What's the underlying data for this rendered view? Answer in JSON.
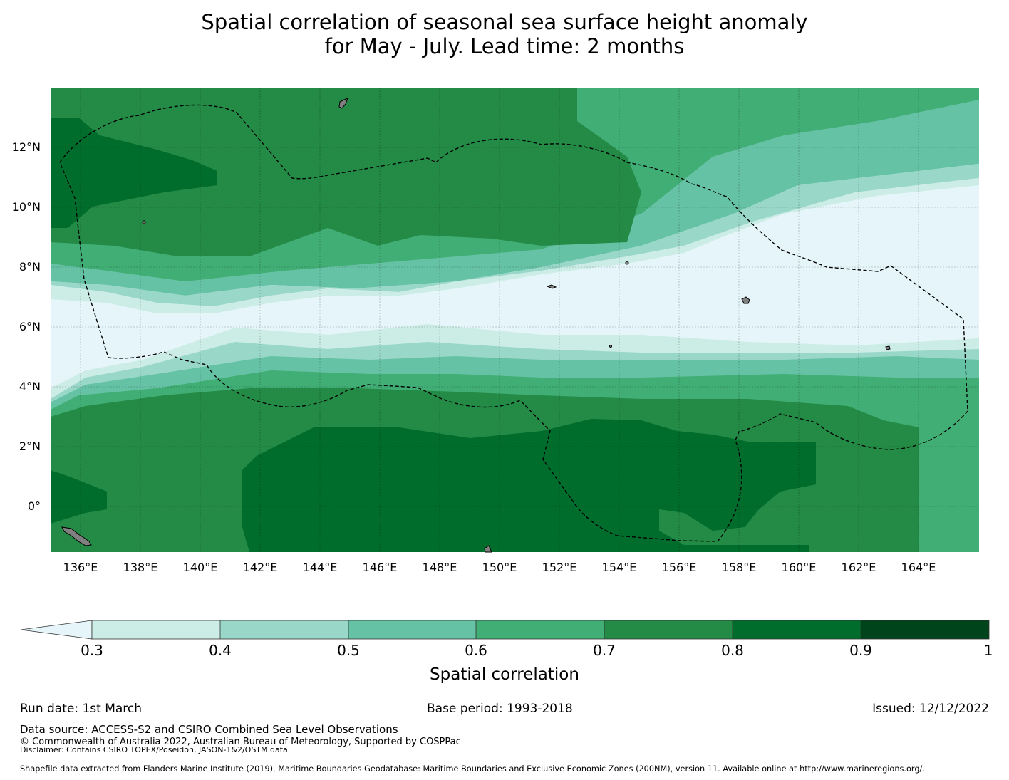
{
  "title": {
    "line1": "Spatial correlation of seasonal sea surface height anomaly",
    "line2": "for May - July. Lead time: 2 months"
  },
  "map": {
    "lon_range": [
      135,
      166
    ],
    "lat_range": [
      -1.5,
      14
    ],
    "lon_ticks": [
      "136°E",
      "138°E",
      "140°E",
      "142°E",
      "144°E",
      "146°E",
      "148°E",
      "150°E",
      "152°E",
      "154°E",
      "156°E",
      "158°E",
      "160°E",
      "162°E",
      "164°E"
    ],
    "lat_ticks": [
      "12°N",
      "10°N",
      "8°N",
      "6°N",
      "4°N",
      "2°N",
      "0°"
    ],
    "land_color": "#808080",
    "boundary_style": "dashed black line (EEZ)"
  },
  "colorbar": {
    "title": "Spatial correlation",
    "ticks": [
      "0.3",
      "0.4",
      "0.5",
      "0.6",
      "0.7",
      "0.8",
      "0.9",
      "1"
    ],
    "colors": [
      "#ccece6",
      "#99d8c9",
      "#66c2a4",
      "#41ae76",
      "#238b45",
      "#006d2c",
      "#00441b"
    ],
    "under_color": "#e5f5f9"
  },
  "footer": {
    "run_date": "Run date: 1st March",
    "base_period": "Base period: 1993-2018",
    "issued": "Issued: 12/12/2022",
    "data_source": "Data source: ACCESS-S2 and CSIRO Combined Sea Level Observations",
    "copyright": "© Commonwealth of Australia 2022, Australian Bureau of Meteorology, Supported by COSPPac",
    "disclaimer": "Disclaimer: Contains CSIRO TOPEX/Poseidon, JASON-1&2/OSTM data",
    "shapefile": "Shapefile data extracted from Flanders Marine Institute (2019), Maritime Boundaries Geodatabase: Maritime Boundaries and Exclusive Economic Zones (200NM), version 11. Available online at http://www.marineregions.org/."
  }
}
